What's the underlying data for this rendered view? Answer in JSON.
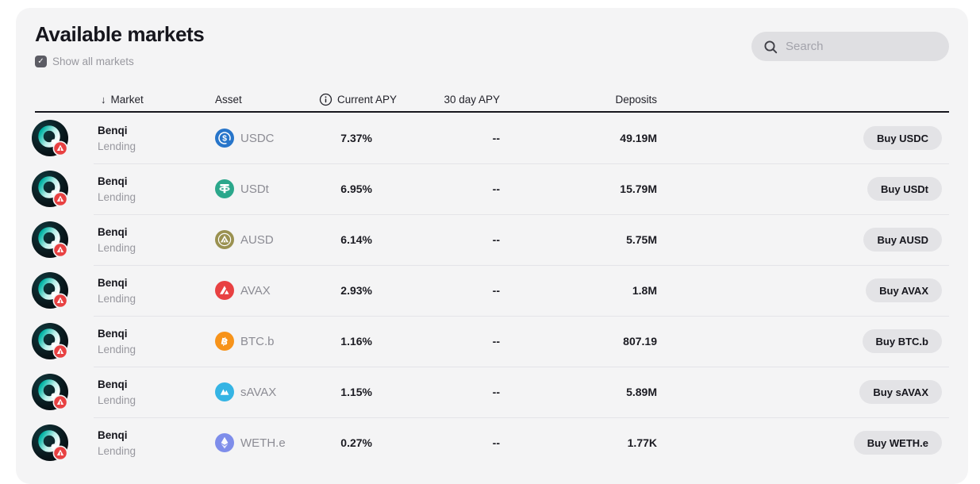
{
  "header": {
    "title": "Available markets",
    "show_all_checkbox": {
      "label": "Show all markets",
      "checked": true,
      "check_glyph": "✓"
    },
    "search": {
      "placeholder": "Search"
    }
  },
  "table": {
    "sort_indicator": "↓",
    "columns": {
      "market": "Market",
      "asset": "Asset",
      "current_apy": "Current APY",
      "apy_30d": "30 day APY",
      "deposits": "Deposits"
    },
    "rows": [
      {
        "protocol": "Benqi",
        "type": "Lending",
        "asset": {
          "symbol": "USDC",
          "icon": "usdc-icon",
          "color": "#2775ca"
        },
        "current_apy": "7.37%",
        "apy_30d": "--",
        "deposits": "49.19M",
        "action": "Buy USDC"
      },
      {
        "protocol": "Benqi",
        "type": "Lending",
        "asset": {
          "symbol": "USDt",
          "icon": "usdt-icon",
          "color": "#2ba78b"
        },
        "current_apy": "6.95%",
        "apy_30d": "--",
        "deposits": "15.79M",
        "action": "Buy USDt"
      },
      {
        "protocol": "Benqi",
        "type": "Lending",
        "asset": {
          "symbol": "AUSD",
          "icon": "ausd-icon",
          "color": "#9a9150"
        },
        "current_apy": "6.14%",
        "apy_30d": "--",
        "deposits": "5.75M",
        "action": "Buy AUSD"
      },
      {
        "protocol": "Benqi",
        "type": "Lending",
        "asset": {
          "symbol": "AVAX",
          "icon": "avax-icon",
          "color": "#e84142"
        },
        "current_apy": "2.93%",
        "apy_30d": "--",
        "deposits": "1.8M",
        "action": "Buy AVAX"
      },
      {
        "protocol": "Benqi",
        "type": "Lending",
        "asset": {
          "symbol": "BTC.b",
          "icon": "btcb-icon",
          "color": "#f7931a"
        },
        "current_apy": "1.16%",
        "apy_30d": "--",
        "deposits": "807.19",
        "action": "Buy BTC.b"
      },
      {
        "protocol": "Benqi",
        "type": "Lending",
        "asset": {
          "symbol": "sAVAX",
          "icon": "savax-icon",
          "color": "#35b4e4"
        },
        "current_apy": "1.15%",
        "apy_30d": "--",
        "deposits": "5.89M",
        "action": "Buy sAVAX"
      },
      {
        "protocol": "Benqi",
        "type": "Lending",
        "asset": {
          "symbol": "WETH.e",
          "icon": "weth-icon",
          "color": "#7e8dea"
        },
        "current_apy": "0.27%",
        "apy_30d": "--",
        "deposits": "1.77K",
        "action": "Buy WETH.e"
      }
    ]
  },
  "colors": {
    "card_bg": "#f4f4f5",
    "header_underline": "#16161d",
    "benqi_teal": "#00b3a4",
    "avalanche_red": "#e84142"
  }
}
